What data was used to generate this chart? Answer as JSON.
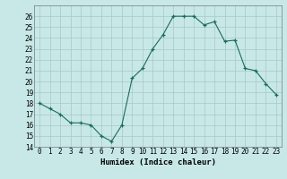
{
  "x": [
    0,
    1,
    2,
    3,
    4,
    5,
    6,
    7,
    8,
    9,
    10,
    11,
    12,
    13,
    14,
    15,
    16,
    17,
    18,
    19,
    20,
    21,
    22,
    23
  ],
  "y": [
    18,
    17.5,
    17,
    16.2,
    16.2,
    16,
    15,
    14.5,
    16,
    20.3,
    21.2,
    23,
    24.3,
    26,
    26,
    26,
    25.2,
    25.5,
    23.7,
    23.8,
    21.2,
    21.0,
    19.8,
    18.8
  ],
  "line_color": "#1a6b5a",
  "marker": "+",
  "marker_color": "#1a6b5a",
  "bg_color": "#c8e8e8",
  "grid_color": "#a8c8c8",
  "xlabel": "Humidex (Indice chaleur)",
  "ylim": [
    14,
    27
  ],
  "xlim": [
    -0.5,
    23.5
  ],
  "yticks": [
    14,
    15,
    16,
    17,
    18,
    19,
    20,
    21,
    22,
    23,
    24,
    25,
    26
  ],
  "xtick_labels": [
    "0",
    "1",
    "2",
    "3",
    "4",
    "5",
    "6",
    "7",
    "8",
    "9",
    "10",
    "11",
    "12",
    "13",
    "14",
    "15",
    "16",
    "17",
    "18",
    "19",
    "20",
    "21",
    "22",
    "23"
  ],
  "label_fontsize": 6.5,
  "tick_fontsize": 5.5
}
